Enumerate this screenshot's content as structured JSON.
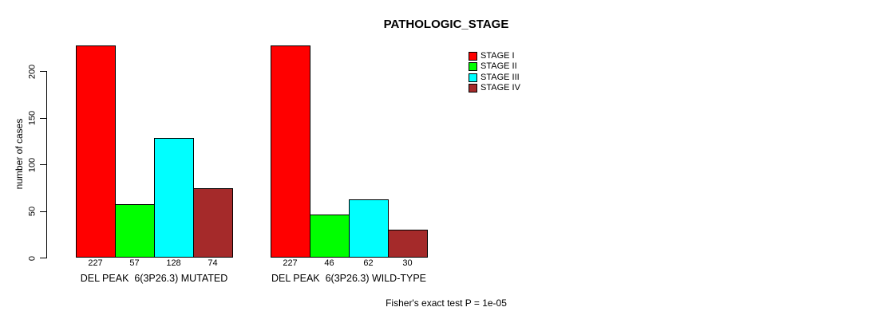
{
  "chart_data": {
    "type": "bar",
    "title": "PATHOLOGIC_STAGE",
    "ylabel": "number of cases",
    "xlabel": "",
    "ylim": [
      0,
      235
    ],
    "yticks": [
      0,
      50,
      100,
      150,
      200
    ],
    "grid": false,
    "legend_position": "top-right",
    "categories": [
      "DEL PEAK  6(3P26.3) MUTATED",
      "DEL PEAK  6(3P26.3) WILD-TYPE"
    ],
    "series": [
      {
        "name": "STAGE I",
        "color": "#ff0000",
        "values": [
          227,
          227
        ]
      },
      {
        "name": "STAGE II",
        "color": "#00ff00",
        "values": [
          57,
          46
        ]
      },
      {
        "name": "STAGE III",
        "color": "#00ffff",
        "values": [
          128,
          62
        ]
      },
      {
        "name": "STAGE IV",
        "color": "#a52a2a",
        "values": [
          74,
          30
        ]
      }
    ],
    "bar_value_labels": [
      [
        227,
        57,
        128,
        74
      ],
      [
        227,
        46,
        62,
        30
      ]
    ],
    "annotation": "Fisher's exact test P = 1e-05",
    "axis_color": "#000000",
    "text_color": "#000000",
    "background_color": "#ffffff"
  }
}
